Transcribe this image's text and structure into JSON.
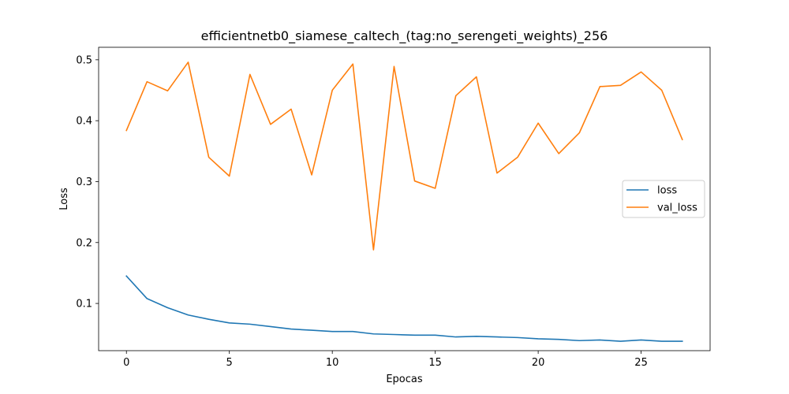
{
  "chart_data": {
    "type": "line",
    "title": "efficientnetb0_siamese_caltech_(tag:no_serengeti_weights)_256",
    "xlabel": "Epocas",
    "ylabel": "Loss",
    "xlim": [
      -1.35,
      28.35
    ],
    "ylim": [
      0.0225,
      0.5205
    ],
    "xticks": [
      0,
      5,
      10,
      15,
      20,
      25
    ],
    "xtick_labels": [
      "0",
      "5",
      "10",
      "15",
      "20",
      "25"
    ],
    "yticks": [
      0.1,
      0.2,
      0.3,
      0.4,
      0.5
    ],
    "ytick_labels": [
      "0.1",
      "0.2",
      "0.3",
      "0.4",
      "0.5"
    ],
    "grid": false,
    "legend_position": "center-right",
    "x": [
      0,
      1,
      2,
      3,
      4,
      5,
      6,
      7,
      8,
      9,
      10,
      11,
      12,
      13,
      14,
      15,
      16,
      17,
      18,
      19,
      20,
      21,
      22,
      23,
      24,
      25,
      26,
      27
    ],
    "series": [
      {
        "name": "loss",
        "color": "#1f77b4",
        "values": [
          0.145,
          0.108,
          0.093,
          0.081,
          0.074,
          0.068,
          0.066,
          0.062,
          0.058,
          0.056,
          0.054,
          0.054,
          0.05,
          0.049,
          0.048,
          0.048,
          0.045,
          0.046,
          0.045,
          0.044,
          0.042,
          0.041,
          0.039,
          0.04,
          0.038,
          0.04,
          0.038,
          0.038
        ]
      },
      {
        "name": "val_loss",
        "color": "#ff7f0e",
        "values": [
          0.384,
          0.464,
          0.449,
          0.496,
          0.34,
          0.309,
          0.476,
          0.394,
          0.419,
          0.311,
          0.45,
          0.493,
          0.188,
          0.489,
          0.301,
          0.289,
          0.441,
          0.472,
          0.314,
          0.34,
          0.396,
          0.346,
          0.38,
          0.456,
          0.458,
          0.48,
          0.45,
          0.369
        ]
      }
    ]
  }
}
